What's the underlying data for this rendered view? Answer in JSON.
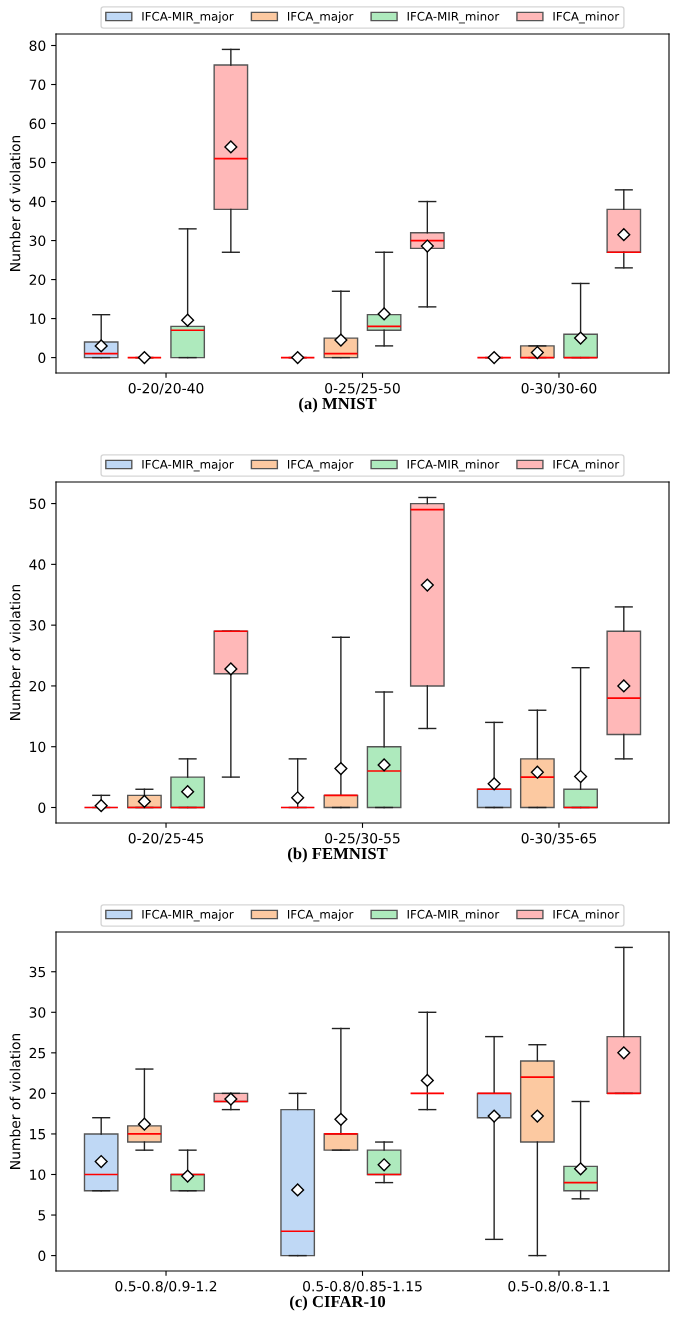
{
  "chart_data": [
    {
      "type": "box",
      "ylabel": "Number of violation",
      "categories": [
        "0-20/20-40",
        "0-25/25-50",
        "0-30/30-60"
      ],
      "ylim": [
        -3.95,
        82.95
      ],
      "yticks": [
        0,
        10,
        20,
        30,
        40,
        50,
        60,
        70,
        80
      ],
      "legend": "top",
      "grid": false,
      "annotations": [
        "(a) MNIST"
      ],
      "series": [
        {
          "name": "IFCA-MIR_major",
          "color": "#bfd8f5",
          "boxes": [
            {
              "low": 0,
              "q1": 0,
              "median": 1,
              "q3": 4,
              "high": 11,
              "mean": 3
            },
            {
              "low": 0,
              "q1": 0,
              "median": 0,
              "q3": 0,
              "high": 0,
              "mean": 0
            },
            {
              "low": 0,
              "q1": 0,
              "median": 0,
              "q3": 0,
              "high": 0,
              "mean": 0
            }
          ]
        },
        {
          "name": "IFCA_major",
          "color": "#fcc9a1",
          "boxes": [
            {
              "low": 0,
              "q1": 0,
              "median": 0,
              "q3": 0,
              "high": 0,
              "mean": 0
            },
            {
              "low": 0,
              "q1": 0,
              "median": 1,
              "q3": 5,
              "high": 17,
              "mean": 4.5
            },
            {
              "low": 0,
              "q1": 0,
              "median": 0,
              "q3": 3,
              "high": 3,
              "mean": 1.3
            }
          ]
        },
        {
          "name": "IFCA-MIR_minor",
          "color": "#aeeabd",
          "boxes": [
            {
              "low": 0,
              "q1": 0,
              "median": 7,
              "q3": 8,
              "high": 33,
              "mean": 9.6
            },
            {
              "low": 3,
              "q1": 7,
              "median": 8,
              "q3": 11,
              "high": 27,
              "mean": 11.2
            },
            {
              "low": 0,
              "q1": 0,
              "median": 0,
              "q3": 6,
              "high": 19,
              "mean": 5
            }
          ]
        },
        {
          "name": "IFCA_minor",
          "color": "#ffb8b8",
          "boxes": [
            {
              "low": 27,
              "q1": 38,
              "median": 51,
              "q3": 75,
              "high": 79,
              "mean": 54
            },
            {
              "low": 13,
              "q1": 28,
              "median": 30,
              "q3": 32,
              "high": 40,
              "mean": 28.6
            },
            {
              "low": 23,
              "q1": 27,
              "median": 27,
              "q3": 38,
              "high": 43,
              "mean": 31.5
            }
          ]
        }
      ]
    },
    {
      "type": "box",
      "ylabel": "Number of violation",
      "categories": [
        "0-20/25-45",
        "0-25/30-55",
        "0-30/35-65"
      ],
      "ylim": [
        -2.55,
        53.55
      ],
      "yticks": [
        0,
        10,
        20,
        30,
        40,
        50
      ],
      "legend": "top",
      "grid": false,
      "annotations": [
        "(b) FEMNIST"
      ],
      "series": [
        {
          "name": "IFCA-MIR_major",
          "color": "#bfd8f5",
          "boxes": [
            {
              "low": 0,
              "q1": 0,
              "median": 0,
              "q3": 0,
              "high": 2,
              "mean": 0.3
            },
            {
              "low": 0,
              "q1": 0,
              "median": 0,
              "q3": 0,
              "high": 8,
              "mean": 1.6
            },
            {
              "low": 0,
              "q1": 0,
              "median": 3,
              "q3": 3,
              "high": 14,
              "mean": 3.9
            }
          ]
        },
        {
          "name": "IFCA_major",
          "color": "#fcc9a1",
          "boxes": [
            {
              "low": 0,
              "q1": 0,
              "median": 0,
              "q3": 2,
              "high": 3,
              "mean": 1
            },
            {
              "low": 0,
              "q1": 0,
              "median": 2,
              "q3": 2,
              "high": 28,
              "mean": 6.4
            },
            {
              "low": 0,
              "q1": 0,
              "median": 5,
              "q3": 8,
              "high": 16,
              "mean": 5.8
            }
          ]
        },
        {
          "name": "IFCA-MIR_minor",
          "color": "#aeeabd",
          "boxes": [
            {
              "low": 0,
              "q1": 0,
              "median": 0,
              "q3": 5,
              "high": 8,
              "mean": 2.6
            },
            {
              "low": 0,
              "q1": 0,
              "median": 6,
              "q3": 10,
              "high": 19,
              "mean": 7
            },
            {
              "low": 0,
              "q1": 0,
              "median": 0,
              "q3": 3,
              "high": 23,
              "mean": 5.1
            }
          ]
        },
        {
          "name": "IFCA_minor",
          "color": "#ffb8b8",
          "boxes": [
            {
              "low": 5,
              "q1": 22,
              "median": 29,
              "q3": 29,
              "high": 29,
              "mean": 22.8
            },
            {
              "low": 13,
              "q1": 20,
              "median": 49,
              "q3": 50,
              "high": 51,
              "mean": 36.6
            },
            {
              "low": 8,
              "q1": 12,
              "median": 18,
              "q3": 29,
              "high": 33,
              "mean": 20
            }
          ]
        }
      ]
    },
    {
      "type": "box",
      "ylabel": "Number of violation",
      "categories": [
        "0.5-0.8/0.9-1.2",
        "0.5-0.8/0.85-1.15",
        "0.5-0.8/0.8-1.1"
      ],
      "ylim": [
        -1.9,
        39.9
      ],
      "yticks": [
        0,
        5,
        10,
        15,
        20,
        25,
        30,
        35
      ],
      "legend": "top",
      "grid": false,
      "annotations": [
        "(c) CIFAR-10"
      ],
      "series": [
        {
          "name": "IFCA-MIR_major",
          "color": "#bfd8f5",
          "boxes": [
            {
              "low": 8,
              "q1": 8,
              "median": 10,
              "q3": 15,
              "high": 17,
              "mean": 11.6
            },
            {
              "low": 0,
              "q1": 0,
              "median": 3,
              "q3": 18,
              "high": 20,
              "mean": 8.1
            },
            {
              "low": 2,
              "q1": 17,
              "median": 20,
              "q3": 20,
              "high": 27,
              "mean": 17.2
            }
          ]
        },
        {
          "name": "IFCA_major",
          "color": "#fcc9a1",
          "boxes": [
            {
              "low": 13,
              "q1": 14,
              "median": 15,
              "q3": 16,
              "high": 23,
              "mean": 16.2
            },
            {
              "low": 13,
              "q1": 13,
              "median": 15,
              "q3": 15,
              "high": 28,
              "mean": 16.8
            },
            {
              "low": 0,
              "q1": 14,
              "median": 22,
              "q3": 24,
              "high": 26,
              "mean": 17.2
            }
          ]
        },
        {
          "name": "IFCA-MIR_minor",
          "color": "#aeeabd",
          "boxes": [
            {
              "low": 8,
              "q1": 8,
              "median": 10,
              "q3": 10,
              "high": 13,
              "mean": 9.8
            },
            {
              "low": 9,
              "q1": 10,
              "median": 10,
              "q3": 13,
              "high": 14,
              "mean": 11.2
            },
            {
              "low": 7,
              "q1": 8,
              "median": 9,
              "q3": 11,
              "high": 19,
              "mean": 10.7
            }
          ]
        },
        {
          "name": "IFCA_minor",
          "color": "#ffb8b8",
          "boxes": [
            {
              "low": 18,
              "q1": 19,
              "median": 19,
              "q3": 20,
              "high": 20,
              "mean": 19.3
            },
            {
              "low": 18,
              "q1": 20,
              "median": 20,
              "q3": 20,
              "high": 30,
              "mean": 21.6
            },
            {
              "low": 20,
              "q1": 20,
              "median": 20,
              "q3": 27,
              "high": 38,
              "mean": 25
            }
          ]
        }
      ]
    }
  ]
}
